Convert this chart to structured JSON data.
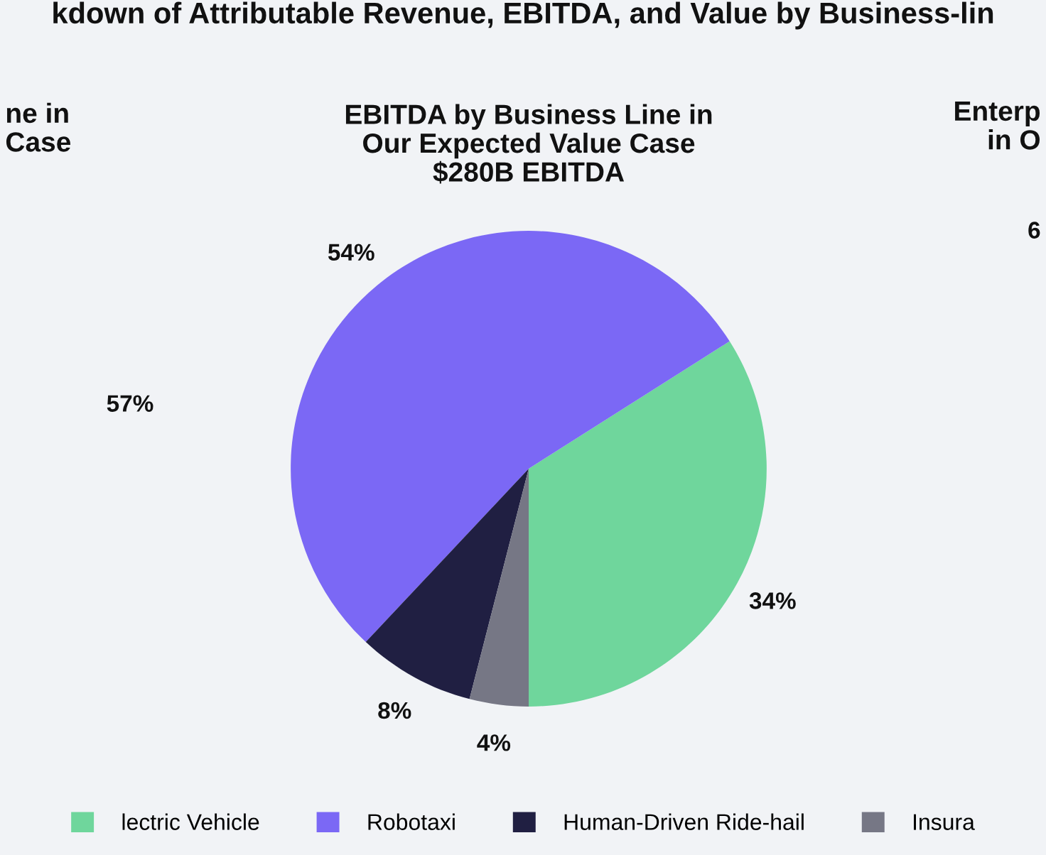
{
  "chart_data": {
    "type": "pie",
    "title": "kdown of Attributable Revenue, EBITDA, and Value by Business-lin",
    "subtitle": "EBITDA by Business Line in\nOur Expected Value Case\n$280B EBITDA",
    "categories": [
      "lectric Vehicle",
      "Robotaxi",
      "Human-Driven Ride-hail",
      "Insura"
    ],
    "values": [
      34,
      54,
      8,
      4
    ],
    "colors": [
      "#6fd69c",
      "#7b68f5",
      "#201f42",
      "#767785"
    ],
    "value_labels": [
      "34%",
      "54%",
      "8%",
      "4%"
    ],
    "legend": "bottom",
    "annotations": [
      "ne in\nCase",
      "57%",
      "Enterp\nin O",
      "6"
    ]
  }
}
